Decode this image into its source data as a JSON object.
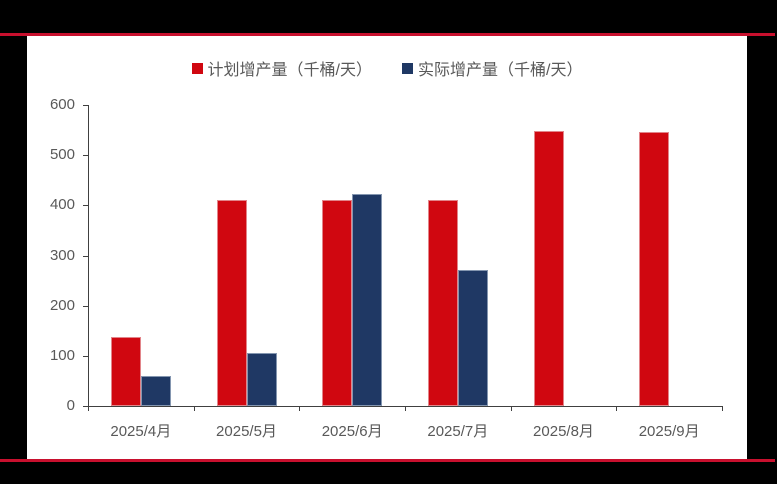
{
  "page": {
    "background_color": "#000000",
    "panel_color": "#FFFFFF",
    "accent_line_color": "#C8102E"
  },
  "chart_data": {
    "type": "bar",
    "title": "",
    "xlabel": "",
    "ylabel": "",
    "categories": [
      "2025/4月",
      "2025/5月",
      "2025/6月",
      "2025/7月",
      "2025/8月",
      "2025/9月"
    ],
    "series": [
      {
        "name": "计划增产量（千桶/天）",
        "color": "#D00710",
        "border_color": "#E2858A",
        "values": [
          138,
          411,
          411,
          411,
          548,
          547
        ]
      },
      {
        "name": "实际增产量（千桶/天）",
        "color": "#1F3864",
        "border_color": "#8496B0",
        "values": [
          60,
          105,
          422,
          271,
          null,
          null
        ]
      }
    ],
    "ylim": [
      0,
      600
    ],
    "ytick_step": 100,
    "yticks": [
      0,
      100,
      200,
      300,
      400,
      500,
      600
    ],
    "grid": false,
    "legend_position": "top-center",
    "axis_color": "#404040",
    "tick_label_color": "#595959"
  }
}
